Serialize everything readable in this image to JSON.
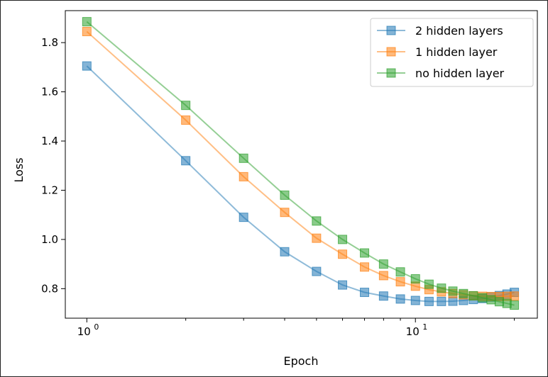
{
  "chart_data": {
    "type": "line",
    "xscale": "log",
    "xlabel": "Epoch",
    "ylabel": "Loss",
    "xlim": [
      0.86,
      23.5
    ],
    "ylim": [
      0.68,
      1.93
    ],
    "xticks": [
      {
        "value": 1,
        "base": "10",
        "exp": "0"
      },
      {
        "value": 10,
        "base": "10",
        "exp": "1"
      }
    ],
    "yticks": [
      0.8,
      1.0,
      1.2,
      1.4,
      1.6,
      1.8
    ],
    "ytick_labels": [
      "0.8",
      "1.0",
      "1.2",
      "1.4",
      "1.6",
      "1.8"
    ],
    "grid": false,
    "legend_position": "upper right",
    "marker": "square",
    "x": [
      1,
      2,
      3,
      4,
      5,
      6,
      7,
      8,
      9,
      10,
      11,
      12,
      13,
      14,
      15,
      16,
      17,
      18,
      19,
      20
    ],
    "series": [
      {
        "name": "2 hidden layers",
        "color": "#1f77b4",
        "values": [
          1.705,
          1.32,
          1.09,
          0.95,
          0.87,
          0.815,
          0.785,
          0.77,
          0.758,
          0.752,
          0.748,
          0.748,
          0.749,
          0.752,
          0.756,
          0.76,
          0.766,
          0.772,
          0.778,
          0.785
        ]
      },
      {
        "name": "1 hidden layer",
        "color": "#ff7f0e",
        "values": [
          1.845,
          1.485,
          1.255,
          1.11,
          1.005,
          0.94,
          0.888,
          0.853,
          0.828,
          0.81,
          0.796,
          0.787,
          0.78,
          0.775,
          0.771,
          0.769,
          0.768,
          0.768,
          0.769,
          0.77
        ]
      },
      {
        "name": "no hidden layer",
        "color": "#2ca02c",
        "values": [
          1.885,
          1.545,
          1.33,
          1.18,
          1.075,
          1.0,
          0.945,
          0.9,
          0.868,
          0.84,
          0.818,
          0.802,
          0.79,
          0.78,
          0.771,
          0.763,
          0.755,
          0.747,
          0.74,
          0.733
        ]
      }
    ]
  }
}
